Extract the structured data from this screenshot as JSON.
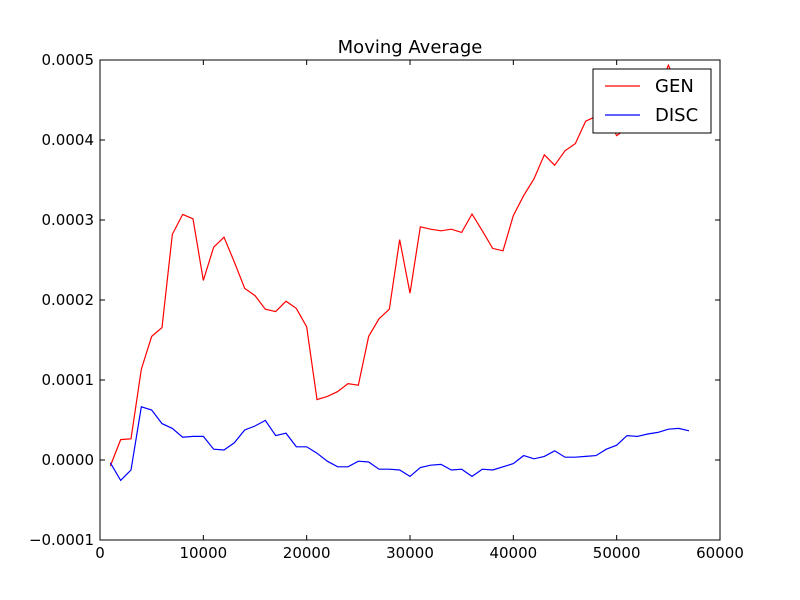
{
  "chart_data": {
    "type": "line",
    "title": "Moving Average",
    "xlabel": "",
    "ylabel": "",
    "xlim": [
      0,
      60000
    ],
    "ylim": [
      -0.0001,
      0.0005
    ],
    "xticks": [
      0,
      10000,
      20000,
      30000,
      40000,
      50000,
      60000
    ],
    "xtick_labels": [
      "0",
      "10000",
      "20000",
      "30000",
      "40000",
      "50000",
      "60000"
    ],
    "yticks": [
      -0.0001,
      0.0,
      0.0001,
      0.0002,
      0.0003,
      0.0004,
      0.0005
    ],
    "ytick_labels": [
      "−0.0001",
      "0.0000",
      "0.0001",
      "0.0002",
      "0.0003",
      "0.0004",
      "0.0005"
    ],
    "grid": false,
    "legend_position": "top-right",
    "x": [
      1000,
      2000,
      3000,
      4000,
      5000,
      6000,
      7000,
      8000,
      9000,
      10000,
      11000,
      12000,
      13000,
      14000,
      15000,
      16000,
      17000,
      18000,
      19000,
      20000,
      21000,
      22000,
      23000,
      24000,
      25000,
      26000,
      27000,
      28000,
      29000,
      30000,
      31000,
      32000,
      33000,
      34000,
      35000,
      36000,
      37000,
      38000,
      39000,
      40000,
      41000,
      42000,
      43000,
      44000,
      45000,
      46000,
      47000,
      48000,
      49000,
      50000,
      51000,
      52000,
      53000,
      54000,
      55000,
      56000,
      57000
    ],
    "series": [
      {
        "name": "GEN",
        "color": "#ff0000",
        "values": [
          -7.5e-06,
          2.55e-05,
          2.65e-05,
          0.0001135,
          0.0001545,
          0.0001655,
          0.000282,
          0.000307,
          0.0003015,
          0.0002245,
          0.000266,
          0.0002785,
          0.0002475,
          0.0002145,
          0.0002055,
          0.0001885,
          0.0001855,
          0.0001985,
          0.0001895,
          0.0001665,
          7.55e-05,
          7.95e-05,
          8.55e-05,
          9.55e-05,
          9.35e-05,
          0.0001545,
          0.0001765,
          0.0001885,
          0.0002755,
          0.0002085,
          0.0002915,
          0.0002885,
          0.0002865,
          0.0002885,
          0.0002845,
          0.0003075,
          0.0002865,
          0.0002645,
          0.0002615,
          0.0003055,
          0.0003305,
          0.0003515,
          0.0003815,
          0.0003685,
          0.0003865,
          0.0003955,
          0.0004235,
          0.0004295,
          0.0004305,
          0.0004055,
          0.0004145,
          0.0004255,
          0.0004355,
          0.0004595,
          0.0004935,
          0.0004655,
          0.0004285
        ]
      },
      {
        "name": "DISC",
        "color": "#0000ff",
        "values": [
          -3.5e-06,
          -2.55e-05,
          -1.25e-05,
          6.65e-05,
          6.25e-05,
          4.55e-05,
          3.95e-05,
          2.85e-05,
          2.95e-05,
          2.95e-05,
          1.35e-05,
          1.25e-05,
          2.15e-05,
          3.75e-05,
          4.25e-05,
          4.95e-05,
          3.05e-05,
          3.35e-05,
          1.65e-05,
          1.65e-05,
          8.5e-06,
          -1.5e-06,
          -8.5e-06,
          -8.5e-06,
          -1.5e-06,
          -2.5e-06,
          -1.15e-05,
          -1.15e-05,
          -1.25e-05,
          -2.05e-05,
          -9.5e-06,
          -6.5e-06,
          -5.5e-06,
          -1.25e-05,
          -1.15e-05,
          -2.05e-05,
          -1.15e-05,
          -1.25e-05,
          -8.5e-06,
          -4.5e-06,
          5.5e-06,
          1.5e-06,
          4.5e-06,
          1.15e-05,
          3.5e-06,
          3.5e-06,
          4.5e-06,
          5.5e-06,
          1.35e-05,
          1.85e-05,
          3.05e-05,
          2.95e-05,
          3.25e-05,
          3.45e-05,
          3.85e-05,
          3.95e-05,
          3.65e-05
        ]
      }
    ]
  }
}
